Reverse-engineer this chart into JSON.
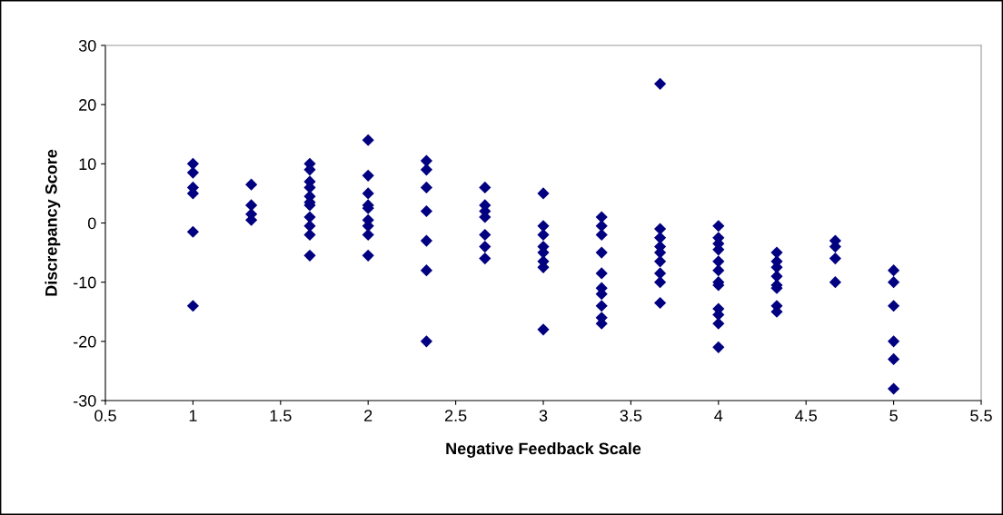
{
  "chart_data": {
    "type": "scatter",
    "xlabel": "Negative Feedback Scale",
    "ylabel": "Discrepancy Score",
    "x": [
      1,
      1,
      1,
      1,
      1,
      1,
      1.333,
      1.333,
      1.333,
      1.333,
      1.667,
      1.667,
      1.667,
      1.667,
      1.667,
      1.667,
      1.667,
      1.667,
      1.667,
      1.667,
      1.667,
      2,
      2,
      2,
      2,
      2,
      2,
      2,
      2,
      2,
      2.333,
      2.333,
      2.333,
      2.333,
      2.333,
      2.333,
      2.333,
      2.667,
      2.667,
      2.667,
      2.667,
      2.667,
      2.667,
      2.667,
      3,
      3,
      3,
      3,
      3,
      3,
      3,
      3,
      3.333,
      3.333,
      3.333,
      3.333,
      3.333,
      3.333,
      3.333,
      3.333,
      3.333,
      3.333,
      3.667,
      3.667,
      3.667,
      3.667,
      3.667,
      3.667,
      3.667,
      3.667,
      3.667,
      4,
      4,
      4,
      4,
      4,
      4,
      4,
      4,
      4,
      4,
      4,
      4,
      4.333,
      4.333,
      4.333,
      4.333,
      4.333,
      4.333,
      4.333,
      4.333,
      4.667,
      4.667,
      4.667,
      4.667,
      5,
      5,
      5,
      5,
      5,
      5
    ],
    "values": [
      10,
      8.5,
      6,
      5,
      -1.5,
      -14,
      6.5,
      3,
      1.5,
      0.5,
      10,
      9,
      7,
      6,
      4.5,
      3.5,
      3,
      1,
      -0.5,
      -2,
      -5.5,
      14,
      8,
      5,
      3,
      2.5,
      0.5,
      -0.5,
      -2,
      -5.5,
      10.5,
      9,
      6,
      2,
      -3,
      -8,
      -20,
      6,
      3,
      2,
      1,
      -2,
      -4,
      -6,
      5,
      -0.5,
      -2,
      -4,
      -5,
      -6.5,
      -7.5,
      -18,
      1,
      -0.5,
      -2,
      -5,
      -8.5,
      -11,
      -12,
      -14,
      -16,
      -17,
      23.5,
      -1,
      -2.5,
      -4,
      -5,
      -6.5,
      -8.5,
      -10,
      -13.5,
      -0.5,
      -2.5,
      -3.5,
      -4.5,
      -6.5,
      -8,
      -10,
      -10.5,
      -14.5,
      -15.5,
      -17,
      -21,
      -5,
      -6.5,
      -7.5,
      -9,
      -10.5,
      -11,
      -14,
      -15,
      -3,
      -4,
      -6,
      -10,
      -8,
      -10,
      -14,
      -20,
      -23,
      -28
    ],
    "color": "#000080",
    "marker": "diamond",
    "xlim": [
      0.5,
      5.5
    ],
    "xticks": [
      0.5,
      1,
      1.5,
      2,
      2.5,
      3,
      3.5,
      4,
      4.5,
      5,
      5.5
    ],
    "ylim": [
      -30,
      30
    ],
    "yticks": [
      -30,
      -20,
      -10,
      0,
      10,
      20,
      30
    ],
    "grid": false
  }
}
